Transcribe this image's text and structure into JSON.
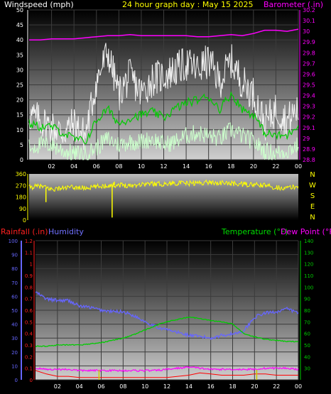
{
  "header": {
    "windspeed_label": "Windspeed (mph)",
    "title": "24 hour graph day : May 15 2025",
    "barometer_label": "Barometer (.in)"
  },
  "lower_header": {
    "rainfall_label": "Rainfall (.in)",
    "humidity_label": "Humidity",
    "temperature_label": "Temperature (°F)",
    "dewpoint_label": "Dew Point (°F)"
  },
  "colors": {
    "background": "#000000",
    "title": "#ffff00",
    "wind_label": "#ffffff",
    "barometer": "#ff00ff",
    "gust": "#f2f2f2",
    "wind_avg": "#00cc00",
    "wind_light": "#ccffcc",
    "direction": "#ffff00",
    "rainfall": "#ff0000",
    "humidity": "#6666ff",
    "temperature": "#00cc00",
    "dewpoint": "#ff00ff",
    "rain_bars": "#cccc00"
  },
  "chart_data": [
    {
      "type": "line",
      "name": "wind-barometer",
      "x_ticks": [
        "02",
        "04",
        "06",
        "08",
        "10",
        "12",
        "14",
        "16",
        "18",
        "20",
        "22",
        "00"
      ],
      "x_range_hours": [
        0,
        24
      ],
      "ylim_wind": [
        0,
        50
      ],
      "wind_ticks": [
        "0",
        "5",
        "10",
        "15",
        "20",
        "25",
        "30",
        "35",
        "40",
        "45",
        "50"
      ],
      "ylim_baro": [
        28.8,
        30.2
      ],
      "baro_ticks": [
        "28.8",
        "28.9",
        "29",
        "29.1",
        "29.2",
        "29.3",
        "29.4",
        "29.5",
        "29.6",
        "29.7",
        "29.8",
        "29.9",
        "30",
        "30.1",
        "30.2"
      ],
      "hours": [
        0,
        1,
        2,
        3,
        4,
        5,
        6,
        7,
        8,
        9,
        10,
        11,
        12,
        13,
        14,
        15,
        16,
        17,
        18,
        19,
        20,
        21,
        22,
        23,
        24
      ],
      "gust": [
        15,
        13,
        11,
        9,
        12,
        8,
        26,
        36,
        22,
        28,
        22,
        27,
        28,
        30,
        32,
        30,
        33,
        26,
        33,
        26,
        22,
        12,
        17,
        13,
        17
      ],
      "wind_avg": [
        12,
        11,
        11,
        9,
        7,
        6,
        13,
        17,
        12,
        14,
        15,
        16,
        14,
        17,
        19,
        20,
        21,
        17,
        22,
        17,
        15,
        9,
        8,
        8,
        12
      ],
      "wind_light": [
        4,
        5,
        5,
        3,
        2,
        2,
        4,
        7,
        5,
        6,
        6,
        7,
        5,
        6,
        8,
        9,
        8,
        7,
        10,
        8,
        6,
        3,
        2,
        3,
        5
      ],
      "barometer": [
        29.92,
        29.92,
        29.93,
        29.93,
        29.93,
        29.94,
        29.95,
        29.96,
        29.96,
        29.97,
        29.96,
        29.96,
        29.96,
        29.96,
        29.96,
        29.95,
        29.95,
        29.96,
        29.97,
        29.96,
        29.98,
        30.01,
        30.01,
        30.0,
        30.02
      ]
    },
    {
      "type": "line",
      "name": "wind-direction",
      "x_range_hours": [
        0,
        24
      ],
      "ylim": [
        0,
        360
      ],
      "y_ticks": [
        "360",
        "270",
        "180",
        "90",
        "0"
      ],
      "compass": [
        "N",
        "W",
        "S",
        "E",
        "N"
      ],
      "hours": [
        0,
        1,
        2,
        3,
        4,
        5,
        6,
        7,
        8,
        9,
        10,
        11,
        12,
        13,
        14,
        15,
        16,
        17,
        18,
        19,
        20,
        21,
        22,
        23,
        24
      ],
      "direction": [
        255,
        265,
        240,
        250,
        255,
        250,
        260,
        270,
        275,
        270,
        280,
        285,
        280,
        290,
        285,
        290,
        295,
        290,
        285,
        280,
        275,
        270,
        255,
        250,
        262
      ],
      "spikes": [
        {
          "hour": 7.4,
          "value": 20
        },
        {
          "hour": 7.6,
          "value": 300
        },
        {
          "hour": 1.5,
          "value": 140
        }
      ]
    },
    {
      "type": "line",
      "name": "humidity-temperature",
      "x_range_hours": [
        0,
        24
      ],
      "x_ticks": [
        "02",
        "04",
        "06",
        "08",
        "10",
        "12",
        "14",
        "16",
        "18",
        "20",
        "22",
        "00"
      ],
      "ylim_rain": [
        0,
        1.2
      ],
      "rain_ticks": [
        "0",
        "0.1",
        "0.2",
        "0.3",
        "0.4",
        "0.5",
        "0.6",
        "0.7",
        "0.8",
        "0.9",
        "1",
        "1.1",
        "1.2"
      ],
      "ylim_humidity": [
        0,
        100
      ],
      "humidity_ticks": [
        "0",
        "10",
        "20",
        "30",
        "40",
        "50",
        "60",
        "70",
        "80",
        "90",
        "100"
      ],
      "ylim_temp": [
        20,
        140
      ],
      "temp_ticks": [
        "30",
        "40",
        "50",
        "60",
        "70",
        "80",
        "90",
        "100",
        "110",
        "120",
        "130",
        "140"
      ],
      "hours": [
        0,
        1,
        2,
        3,
        4,
        5,
        6,
        7,
        8,
        9,
        10,
        11,
        12,
        13,
        14,
        15,
        16,
        17,
        18,
        19,
        20,
        21,
        22,
        23,
        24
      ],
      "humidity": [
        63,
        58,
        57,
        57,
        53,
        52,
        50,
        49,
        49,
        46,
        42,
        38,
        36,
        34,
        32,
        31,
        30,
        32,
        33,
        35,
        45,
        48,
        49,
        51,
        48
      ],
      "temperature": [
        49,
        49,
        50,
        50,
        50,
        51,
        52,
        54,
        56,
        59,
        63,
        67,
        70,
        72,
        74,
        73,
        71,
        70,
        68,
        60,
        57,
        55,
        54,
        53,
        53
      ],
      "dewpoint": [
        30,
        29,
        29,
        29,
        28,
        28,
        28,
        28,
        28,
        28,
        28,
        28,
        29,
        30,
        31,
        30,
        29,
        29,
        29,
        29,
        29,
        30,
        30,
        30,
        29
      ],
      "rainfall": [
        0.08,
        0.05,
        0.03,
        0.03,
        0.02,
        0.02,
        0.02,
        0.02,
        0.02,
        0.02,
        0.02,
        0.02,
        0.02,
        0.03,
        0.04,
        0.06,
        0.05,
        0.04,
        0.04,
        0.04,
        0.05,
        0.05,
        0.04,
        0.04,
        0.04
      ],
      "rain_events_hours": [
        5.8,
        20.2
      ]
    }
  ]
}
